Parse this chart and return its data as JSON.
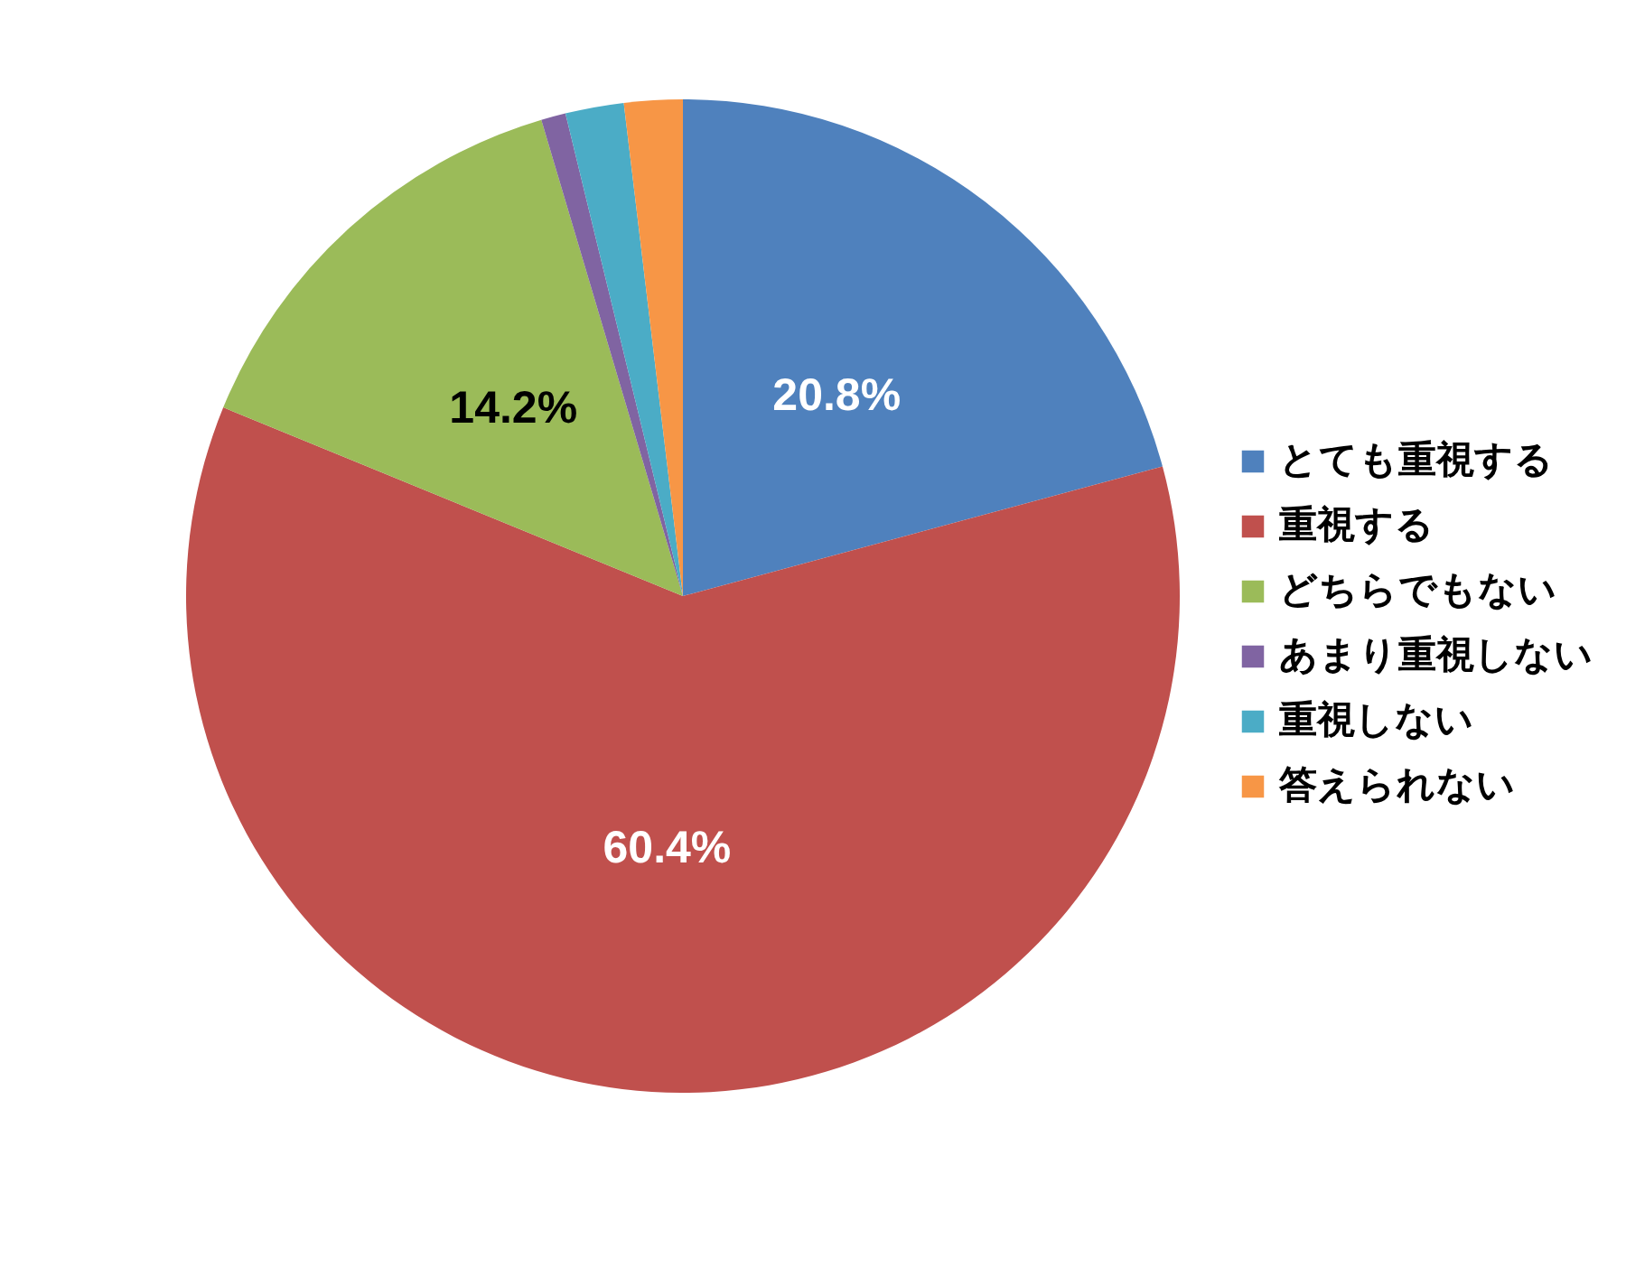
{
  "chart_data": {
    "type": "pie",
    "categories": [
      "とても重視する",
      "重視する",
      "どちらでもない",
      "あまり重視しない",
      "重視しない",
      "答えられない"
    ],
    "values": [
      20.8,
      60.4,
      14.2,
      0.8,
      1.9,
      1.9
    ],
    "colors": [
      "#4f81bd",
      "#c0504d",
      "#9bbb59",
      "#8064a2",
      "#4bacc6",
      "#f79646"
    ],
    "value_labels": [
      "20.8%",
      "60.4%",
      "14.2%",
      null,
      null,
      null
    ],
    "legend": "right"
  }
}
